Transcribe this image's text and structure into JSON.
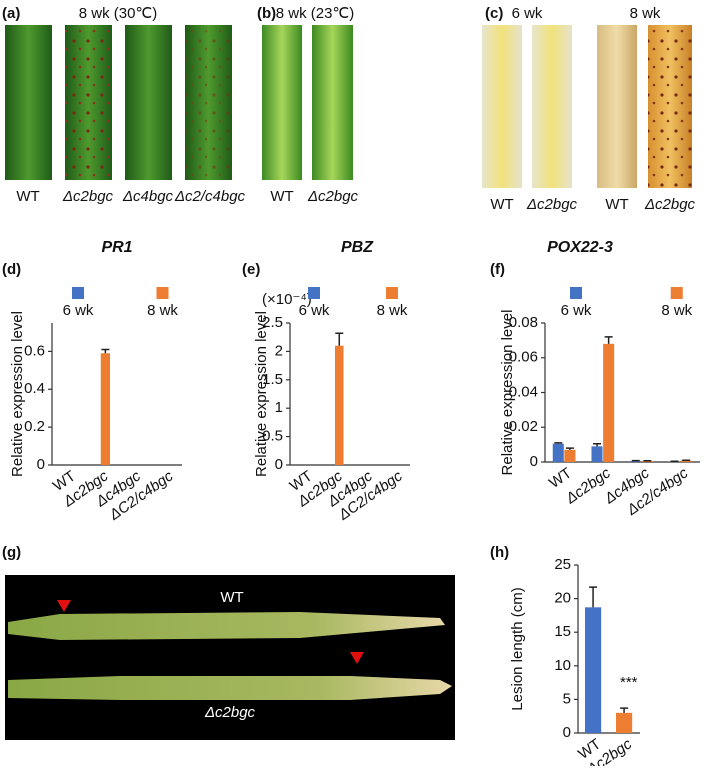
{
  "photo_panels": {
    "a": {
      "panel_label": "(a)",
      "title": "8 wk (30℃)",
      "labels": [
        "WT",
        "Δc2bgc",
        "Δc4bgc",
        "Δc2/c4bgc"
      ]
    },
    "b": {
      "panel_label": "(b)",
      "title": "8 wk (23℃)",
      "labels": [
        "WT",
        "Δc2bgc"
      ]
    },
    "c": {
      "panel_label": "(c)",
      "titles": [
        "6 wk",
        "8 wk"
      ],
      "labels": [
        "WT",
        "Δc2bgc",
        "WT",
        "Δc2bgc"
      ]
    },
    "g": {
      "panel_label": "(g)",
      "labels": [
        "WT",
        "Δc2bgc"
      ]
    }
  },
  "chart_data": [
    {
      "type": "bar",
      "panel_label": "(d)",
      "title": "PR1",
      "y_label": "Relative expression level",
      "categories": [
        "WT",
        "Δc2bgc",
        "Δc4bgc",
        "ΔC2/c4bgc"
      ],
      "series": [
        {
          "name": "6 wk",
          "color": "#4472c4",
          "values": [
            0,
            0,
            0,
            0
          ],
          "errors": [
            0,
            0,
            0,
            0
          ]
        },
        {
          "name": "8 wk",
          "color": "#ed7d31",
          "values": [
            0,
            0.59,
            0,
            0
          ],
          "errors": [
            0,
            0.02,
            0,
            0
          ]
        }
      ],
      "ylim": [
        0,
        0.75
      ],
      "yticks": [
        0,
        0.2,
        0.4,
        0.6
      ],
      "legend": "top"
    },
    {
      "type": "bar",
      "panel_label": "(e)",
      "title": "PBZ",
      "y_label": "Relative expression level",
      "annotation": "(×10⁻⁴)",
      "categories": [
        "WT",
        "Δc2bgc",
        "Δc4bgc",
        "ΔC2/c4bgc"
      ],
      "series": [
        {
          "name": "6 wk",
          "color": "#4472c4",
          "values": [
            0,
            0,
            0,
            0
          ],
          "errors": [
            0,
            0,
            0,
            0
          ]
        },
        {
          "name": "8 wk",
          "color": "#ed7d31",
          "values": [
            0,
            2.1,
            0,
            0
          ],
          "errors": [
            0,
            0.22,
            0,
            0
          ]
        }
      ],
      "ylim": [
        0,
        2.5
      ],
      "yticks": [
        0,
        0.5,
        1,
        1.5,
        2,
        2.5
      ],
      "legend": "top"
    },
    {
      "type": "bar",
      "panel_label": "(f)",
      "title": "POX22-3",
      "y_label": "Relative expression level",
      "categories": [
        "WT",
        "Δc2bgc",
        "Δc4bgc",
        "Δc2/c4bgc"
      ],
      "series": [
        {
          "name": "6 wk",
          "color": "#4472c4",
          "values": [
            0.0105,
            0.009,
            0.0005,
            0.0003
          ],
          "errors": [
            0.0005,
            0.0015,
            0.0003,
            0.0001
          ]
        },
        {
          "name": "8 wk",
          "color": "#ed7d31",
          "values": [
            0.007,
            0.068,
            0.0005,
            0.0008
          ],
          "errors": [
            0.001,
            0.004,
            0.0002,
            0.0002
          ]
        }
      ],
      "ylim": [
        0,
        0.08
      ],
      "yticks": [
        0,
        0.02,
        0.04,
        0.06,
        0.08
      ],
      "legend": "top"
    },
    {
      "type": "bar",
      "panel_label": "(h)",
      "y_label": "Lesion length (cm)",
      "annotation": "***",
      "categories": [
        "WT",
        "Δc2bgc"
      ],
      "values": [
        18.7,
        3.0
      ],
      "errors": [
        3.0,
        0.7
      ],
      "colors": [
        "#4472c4",
        "#ed7d31"
      ],
      "ylim": [
        0,
        25
      ],
      "yticks": [
        0,
        5,
        10,
        15,
        20,
        25
      ]
    }
  ]
}
